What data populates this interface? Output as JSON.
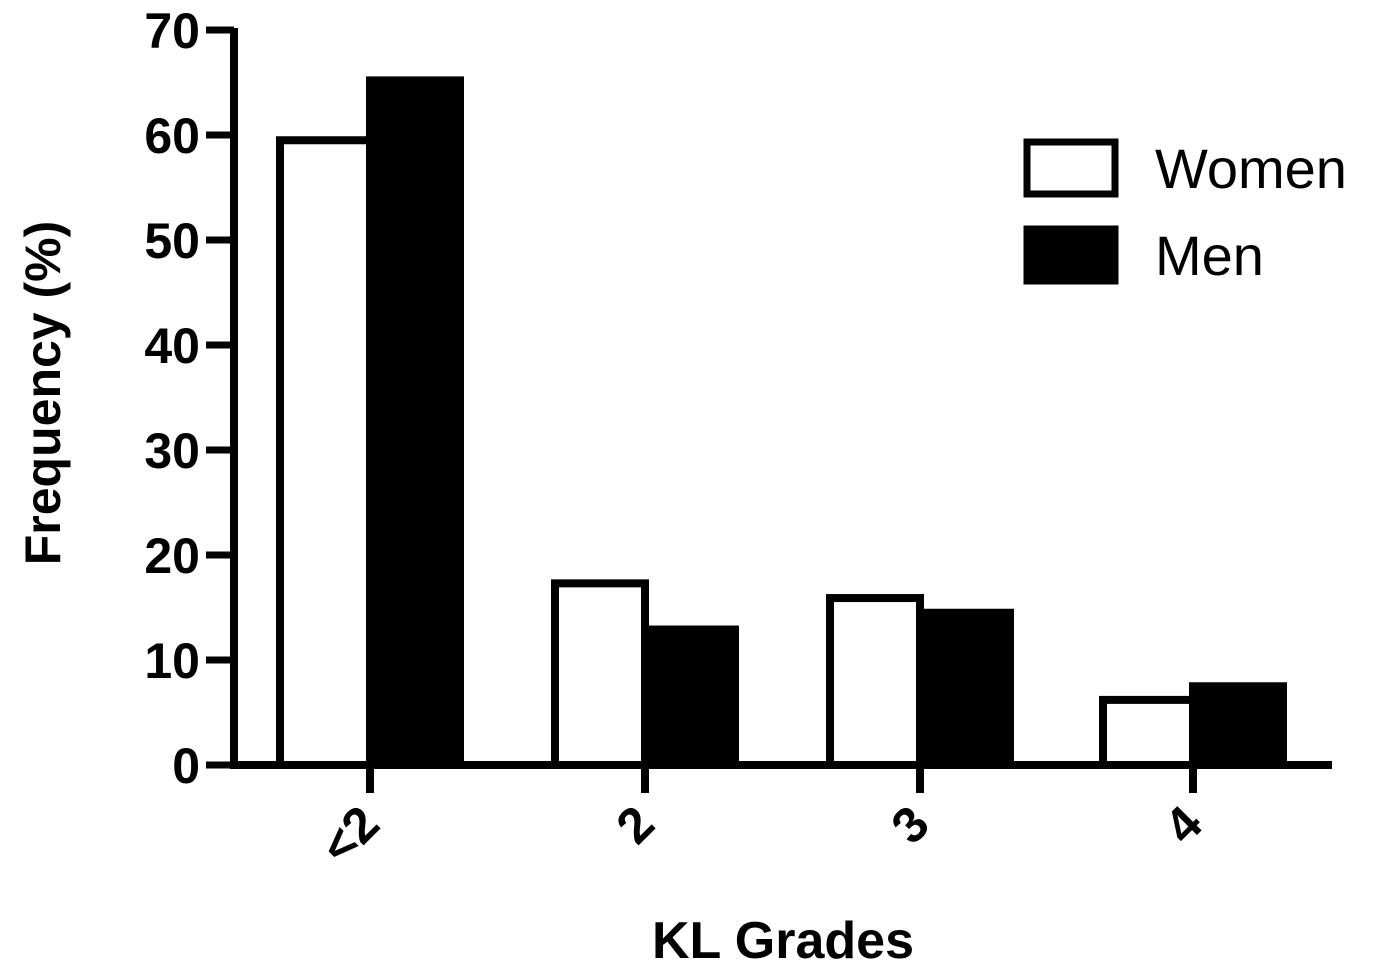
{
  "chart_data": {
    "type": "bar",
    "title": "",
    "xlabel": "KL Grades",
    "ylabel": "Frequency (%)",
    "ylim": [
      0,
      70
    ],
    "yticks": [
      0,
      10,
      20,
      30,
      40,
      50,
      60,
      70
    ],
    "categories": [
      "<2",
      "2",
      "3",
      "4"
    ],
    "series": [
      {
        "name": "Women",
        "values": [
          59.5,
          17.3,
          15.9,
          6.2
        ],
        "fill": "#ffffff",
        "stroke": "#000000"
      },
      {
        "name": "Men",
        "values": [
          65.2,
          12.9,
          14.5,
          7.5
        ],
        "fill": "#000000",
        "stroke": "#000000"
      }
    ],
    "legend": {
      "position": "top-right"
    },
    "grid": false,
    "tick_label_rotation": "-45"
  }
}
